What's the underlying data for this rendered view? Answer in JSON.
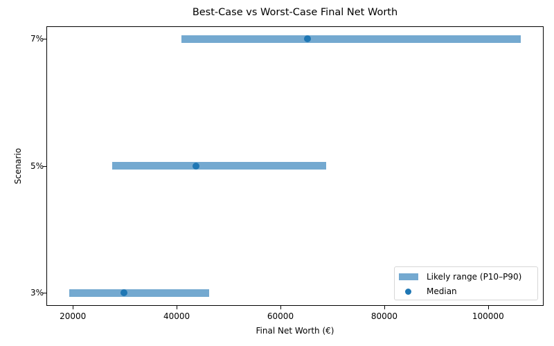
{
  "chart_data": {
    "type": "range_dot",
    "title": "Best-Case vs Worst-Case Final Net Worth",
    "xlabel": "Final Net Worth (€)",
    "ylabel": "Scenario",
    "categories": [
      "3%",
      "5%",
      "7%"
    ],
    "series": [
      {
        "name": "Likely range (P10–P90)",
        "type": "range",
        "low": [
          19300,
          27600,
          40900
        ],
        "high": [
          46300,
          68800,
          106300
        ],
        "color": "#74a9d0"
      },
      {
        "name": "Median",
        "type": "scatter",
        "values": [
          29900,
          43700,
          65200
        ],
        "color": "#1f77b4"
      }
    ],
    "xlim": [
      14900,
      110700
    ],
    "xticks": [
      20000,
      40000,
      60000,
      80000,
      100000
    ],
    "xtick_labels": [
      "20000",
      "40000",
      "60000",
      "80000",
      "100000"
    ],
    "grid": false,
    "legend_position": "lower right"
  },
  "legend": {
    "range_label": "Likely range (P10–P90)",
    "median_label": "Median"
  }
}
